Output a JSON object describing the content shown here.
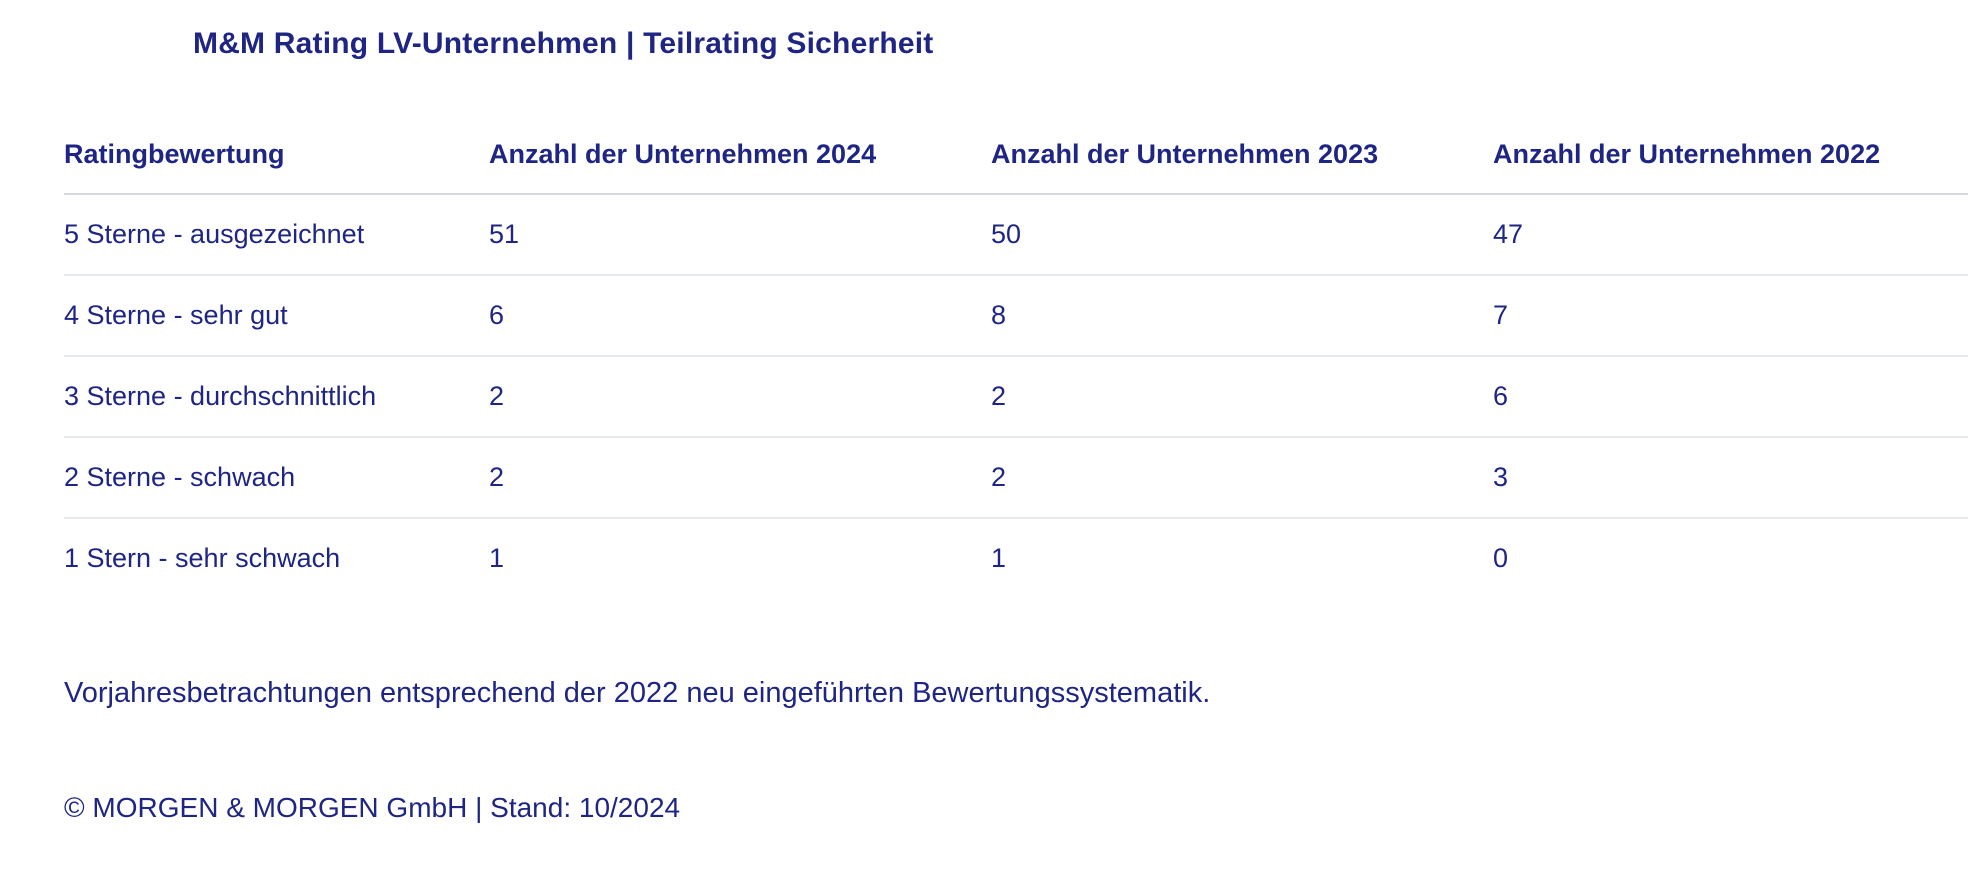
{
  "title": "M&M Rating LV-Unternehmen | Teilrating Sicherheit",
  "table": {
    "columns": [
      "Ratingbewertung",
      "Anzahl der Unternehmen 2024",
      "Anzahl der Unternehmen 2023",
      "Anzahl der Unternehmen 2022"
    ],
    "rows": [
      [
        "5 Sterne - ausgezeichnet",
        "51",
        "50",
        "47"
      ],
      [
        "4 Sterne - sehr gut",
        "6",
        "8",
        "7"
      ],
      [
        "3 Sterne - durchschnittlich",
        "2",
        "2",
        "6"
      ],
      [
        "2 Sterne - schwach",
        "2",
        "2",
        "3"
      ],
      [
        "1 Stern - sehr schwach",
        "1",
        "1",
        "0"
      ]
    ]
  },
  "note": "Vorjahresbetrachtungen entsprechend der 2022 neu eingeführten Bewertungssystematik.",
  "copyright": "© MORGEN & MORGEN GmbH | Stand: 10/2024",
  "colors": {
    "text": "#1f2583",
    "header_divider": "#d5d8e2",
    "row_divider": "#e5e8ec",
    "background": "#ffffff"
  }
}
